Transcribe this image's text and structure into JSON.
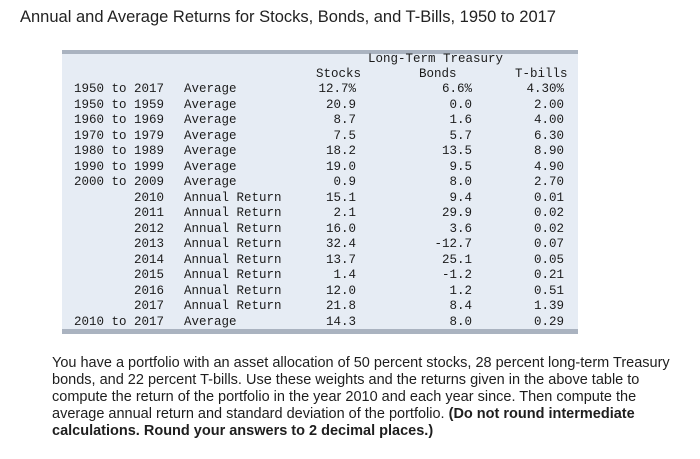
{
  "title": "Annual and Average Returns for Stocks, Bonds, and T-Bills, 1950 to 2017",
  "table": {
    "headers": {
      "long_term_treasury": "Long-Term Treasury",
      "stocks": "Stocks",
      "bonds": "Bonds",
      "tbills": "T-bills"
    },
    "rows": [
      {
        "period": "1950 to 2017",
        "label": "Average",
        "stocks": "12.7%",
        "bonds": "6.6%",
        "tbills": "4.30%"
      },
      {
        "period": "1950 to 1959",
        "label": "Average",
        "stocks": "20.9",
        "bonds": "0.0",
        "tbills": "2.00"
      },
      {
        "period": "1960 to 1969",
        "label": "Average",
        "stocks": "8.7",
        "bonds": "1.6",
        "tbills": "4.00"
      },
      {
        "period": "1970 to 1979",
        "label": "Average",
        "stocks": "7.5",
        "bonds": "5.7",
        "tbills": "6.30"
      },
      {
        "period": "1980 to 1989",
        "label": "Average",
        "stocks": "18.2",
        "bonds": "13.5",
        "tbills": "8.90"
      },
      {
        "period": "1990 to 1999",
        "label": "Average",
        "stocks": "19.0",
        "bonds": "9.5",
        "tbills": "4.90"
      },
      {
        "period": "2000 to 2009",
        "label": "Average",
        "stocks": "0.9",
        "bonds": "8.0",
        "tbills": "2.70"
      },
      {
        "period": "2010",
        "label": "Annual Return",
        "stocks": "15.1",
        "bonds": "9.4",
        "tbills": "0.01"
      },
      {
        "period": "2011",
        "label": "Annual Return",
        "stocks": "2.1",
        "bonds": "29.9",
        "tbills": "0.02"
      },
      {
        "period": "2012",
        "label": "Annual Return",
        "stocks": "16.0",
        "bonds": "3.6",
        "tbills": "0.02"
      },
      {
        "period": "2013",
        "label": "Annual Return",
        "stocks": "32.4",
        "bonds": "-12.7",
        "tbills": "0.07"
      },
      {
        "period": "2014",
        "label": "Annual Return",
        "stocks": "13.7",
        "bonds": "25.1",
        "tbills": "0.05"
      },
      {
        "period": "2015",
        "label": "Annual Return",
        "stocks": "1.4",
        "bonds": "-1.2",
        "tbills": "0.21"
      },
      {
        "period": "2016",
        "label": "Annual Return",
        "stocks": "12.0",
        "bonds": "1.2",
        "tbills": "0.51"
      },
      {
        "period": "2017",
        "label": "Annual Return",
        "stocks": "21.8",
        "bonds": "8.4",
        "tbills": "1.39"
      },
      {
        "period": "2010 to 2017",
        "label": "Average",
        "stocks": "14.3",
        "bonds": "8.0",
        "tbills": "0.29"
      }
    ]
  },
  "question": {
    "text": "You have a portfolio with an asset allocation of 50 percent stocks, 28 percent long-term Treasury bonds, and 22 percent T-bills. Use these weights and the returns given in the above table to compute the return of the portfolio in the year 2010 and each year since. Then compute the average annual return and standard deviation of the portfolio. ",
    "bold_text": "(Do not round intermediate calculations. Round your answers to 2 decimal places.)"
  },
  "colors": {
    "panel_background": "#e6ecf4",
    "panel_rule": "#aab3c0"
  }
}
